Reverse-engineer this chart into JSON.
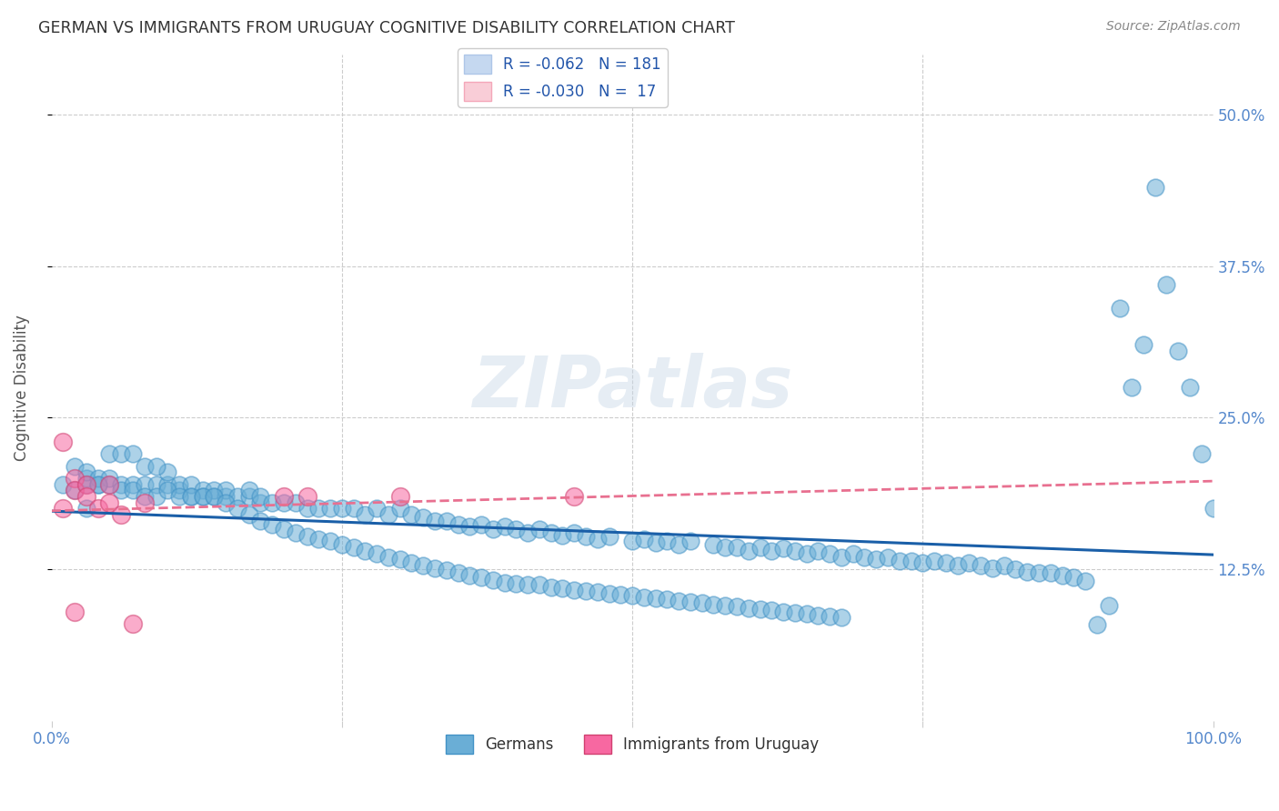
{
  "title": "GERMAN VS IMMIGRANTS FROM URUGUAY COGNITIVE DISABILITY CORRELATION CHART",
  "source": "Source: ZipAtlas.com",
  "ylabel": "Cognitive Disability",
  "xlim": [
    0.0,
    1.0
  ],
  "ylim": [
    0.0,
    0.55
  ],
  "yticks": [
    0.125,
    0.25,
    0.375,
    0.5
  ],
  "ytick_labels": [
    "12.5%",
    "25.0%",
    "37.5%",
    "50.0%"
  ],
  "xticks": [
    0.0,
    0.25,
    0.5,
    0.75,
    1.0
  ],
  "watermark": "ZIPatlas",
  "legend_label_german": "Germans",
  "legend_label_uruguay": "Immigrants from Uruguay",
  "german_color": "#6aaed6",
  "german_edge": "#4292c6",
  "uruguay_color": "#f768a1",
  "uruguay_edge": "#d04070",
  "trendline_german_color": "#1a5fa8",
  "trendline_uruguay_color": "#e87090",
  "background_color": "#ffffff",
  "grid_color": "#cccccc",
  "title_color": "#333333",
  "axis_label_color": "#555555",
  "tick_label_color": "#5588cc",
  "german_x": [
    0.01,
    0.02,
    0.02,
    0.03,
    0.03,
    0.03,
    0.04,
    0.04,
    0.05,
    0.05,
    0.06,
    0.06,
    0.07,
    0.07,
    0.08,
    0.08,
    0.09,
    0.09,
    0.1,
    0.1,
    0.11,
    0.11,
    0.12,
    0.12,
    0.13,
    0.13,
    0.14,
    0.14,
    0.15,
    0.15,
    0.16,
    0.17,
    0.17,
    0.18,
    0.18,
    0.19,
    0.2,
    0.21,
    0.22,
    0.23,
    0.24,
    0.25,
    0.26,
    0.27,
    0.28,
    0.29,
    0.3,
    0.31,
    0.32,
    0.33,
    0.34,
    0.35,
    0.36,
    0.37,
    0.38,
    0.39,
    0.4,
    0.41,
    0.42,
    0.43,
    0.44,
    0.45,
    0.46,
    0.47,
    0.48,
    0.5,
    0.51,
    0.52,
    0.53,
    0.54,
    0.55,
    0.57,
    0.58,
    0.59,
    0.6,
    0.61,
    0.62,
    0.63,
    0.64,
    0.65,
    0.66,
    0.67,
    0.68,
    0.69,
    0.7,
    0.71,
    0.72,
    0.73,
    0.74,
    0.75,
    0.76,
    0.77,
    0.78,
    0.79,
    0.8,
    0.81,
    0.82,
    0.83,
    0.84,
    0.85,
    0.86,
    0.87,
    0.88,
    0.89,
    0.9,
    0.91,
    0.92,
    0.93,
    0.94,
    0.95,
    0.96,
    0.97,
    0.98,
    0.99,
    1.0,
    0.03,
    0.04,
    0.05,
    0.06,
    0.07,
    0.08,
    0.09,
    0.1,
    0.11,
    0.12,
    0.13,
    0.14,
    0.15,
    0.16,
    0.17,
    0.18,
    0.19,
    0.2,
    0.21,
    0.22,
    0.23,
    0.24,
    0.25,
    0.26,
    0.27,
    0.28,
    0.29,
    0.3,
    0.31,
    0.32,
    0.33,
    0.34,
    0.35,
    0.36,
    0.37,
    0.38,
    0.39,
    0.4,
    0.41,
    0.42,
    0.43,
    0.44,
    0.45,
    0.46,
    0.47,
    0.48,
    0.49,
    0.5,
    0.51,
    0.52,
    0.53,
    0.54,
    0.55,
    0.56,
    0.57,
    0.58,
    0.59,
    0.6,
    0.61,
    0.62,
    0.63,
    0.64,
    0.65,
    0.66,
    0.67,
    0.68
  ],
  "german_y": [
    0.195,
    0.19,
    0.21,
    0.195,
    0.2,
    0.205,
    0.195,
    0.2,
    0.195,
    0.2,
    0.195,
    0.19,
    0.195,
    0.19,
    0.195,
    0.185,
    0.195,
    0.185,
    0.195,
    0.205,
    0.19,
    0.195,
    0.185,
    0.195,
    0.19,
    0.185,
    0.185,
    0.19,
    0.185,
    0.19,
    0.185,
    0.185,
    0.19,
    0.18,
    0.185,
    0.18,
    0.18,
    0.18,
    0.175,
    0.175,
    0.175,
    0.175,
    0.175,
    0.17,
    0.175,
    0.17,
    0.175,
    0.17,
    0.168,
    0.165,
    0.165,
    0.162,
    0.16,
    0.162,
    0.158,
    0.16,
    0.158,
    0.155,
    0.158,
    0.155,
    0.153,
    0.155,
    0.152,
    0.15,
    0.152,
    0.148,
    0.15,
    0.147,
    0.148,
    0.145,
    0.148,
    0.145,
    0.143,
    0.143,
    0.14,
    0.143,
    0.14,
    0.142,
    0.14,
    0.138,
    0.14,
    0.138,
    0.135,
    0.138,
    0.135,
    0.133,
    0.135,
    0.132,
    0.132,
    0.13,
    0.132,
    0.13,
    0.128,
    0.13,
    0.128,
    0.126,
    0.128,
    0.125,
    0.123,
    0.122,
    0.122,
    0.12,
    0.118,
    0.115,
    0.079,
    0.095,
    0.34,
    0.275,
    0.31,
    0.44,
    0.36,
    0.305,
    0.275,
    0.22,
    0.175,
    0.175,
    0.195,
    0.22,
    0.22,
    0.22,
    0.21,
    0.21,
    0.19,
    0.185,
    0.185,
    0.185,
    0.185,
    0.18,
    0.175,
    0.17,
    0.165,
    0.162,
    0.158,
    0.155,
    0.152,
    0.15,
    0.148,
    0.145,
    0.143,
    0.14,
    0.138,
    0.135,
    0.133,
    0.13,
    0.128,
    0.126,
    0.124,
    0.122,
    0.12,
    0.118,
    0.116,
    0.114,
    0.113,
    0.112,
    0.112,
    0.11,
    0.109,
    0.108,
    0.107,
    0.106,
    0.105,
    0.104,
    0.103,
    0.102,
    0.101,
    0.1,
    0.099,
    0.098,
    0.097,
    0.096,
    0.095,
    0.094,
    0.093,
    0.092,
    0.091,
    0.09,
    0.089,
    0.088,
    0.087,
    0.086,
    0.085
  ],
  "uruguay_x": [
    0.01,
    0.01,
    0.02,
    0.02,
    0.02,
    0.03,
    0.03,
    0.04,
    0.05,
    0.05,
    0.06,
    0.07,
    0.08,
    0.2,
    0.22,
    0.3,
    0.45
  ],
  "uruguay_y": [
    0.23,
    0.175,
    0.2,
    0.19,
    0.09,
    0.195,
    0.185,
    0.175,
    0.195,
    0.18,
    0.17,
    0.08,
    0.18,
    0.185,
    0.185,
    0.185,
    0.185
  ]
}
